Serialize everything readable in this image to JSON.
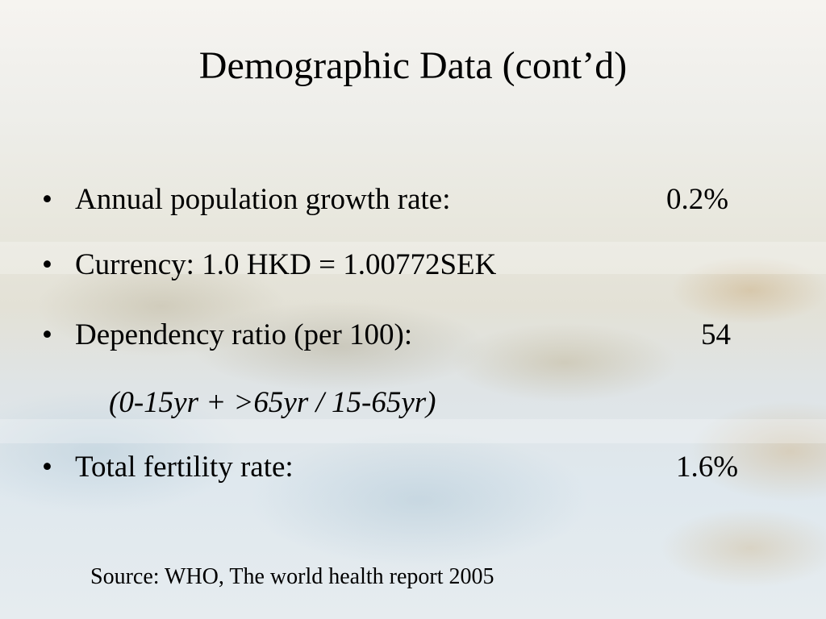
{
  "slide": {
    "title": "Demographic Data (cont’d)",
    "bullets": [
      {
        "marker": "•",
        "label": "Annual population growth rate:",
        "value": "0.2%"
      },
      {
        "marker": "•",
        "label": "Currency: 1.0 HKD = 1.00772SEK",
        "value": ""
      },
      {
        "marker": "•",
        "label": "Dependency ratio (per 100):",
        "value": "54"
      },
      {
        "marker": "•",
        "label": "Total fertility rate:",
        "value": "1.6%"
      }
    ],
    "dependency_note": "(0-15yr + >65yr / 15-65yr)",
    "source": "Source: WHO, The world health report 2005"
  }
}
